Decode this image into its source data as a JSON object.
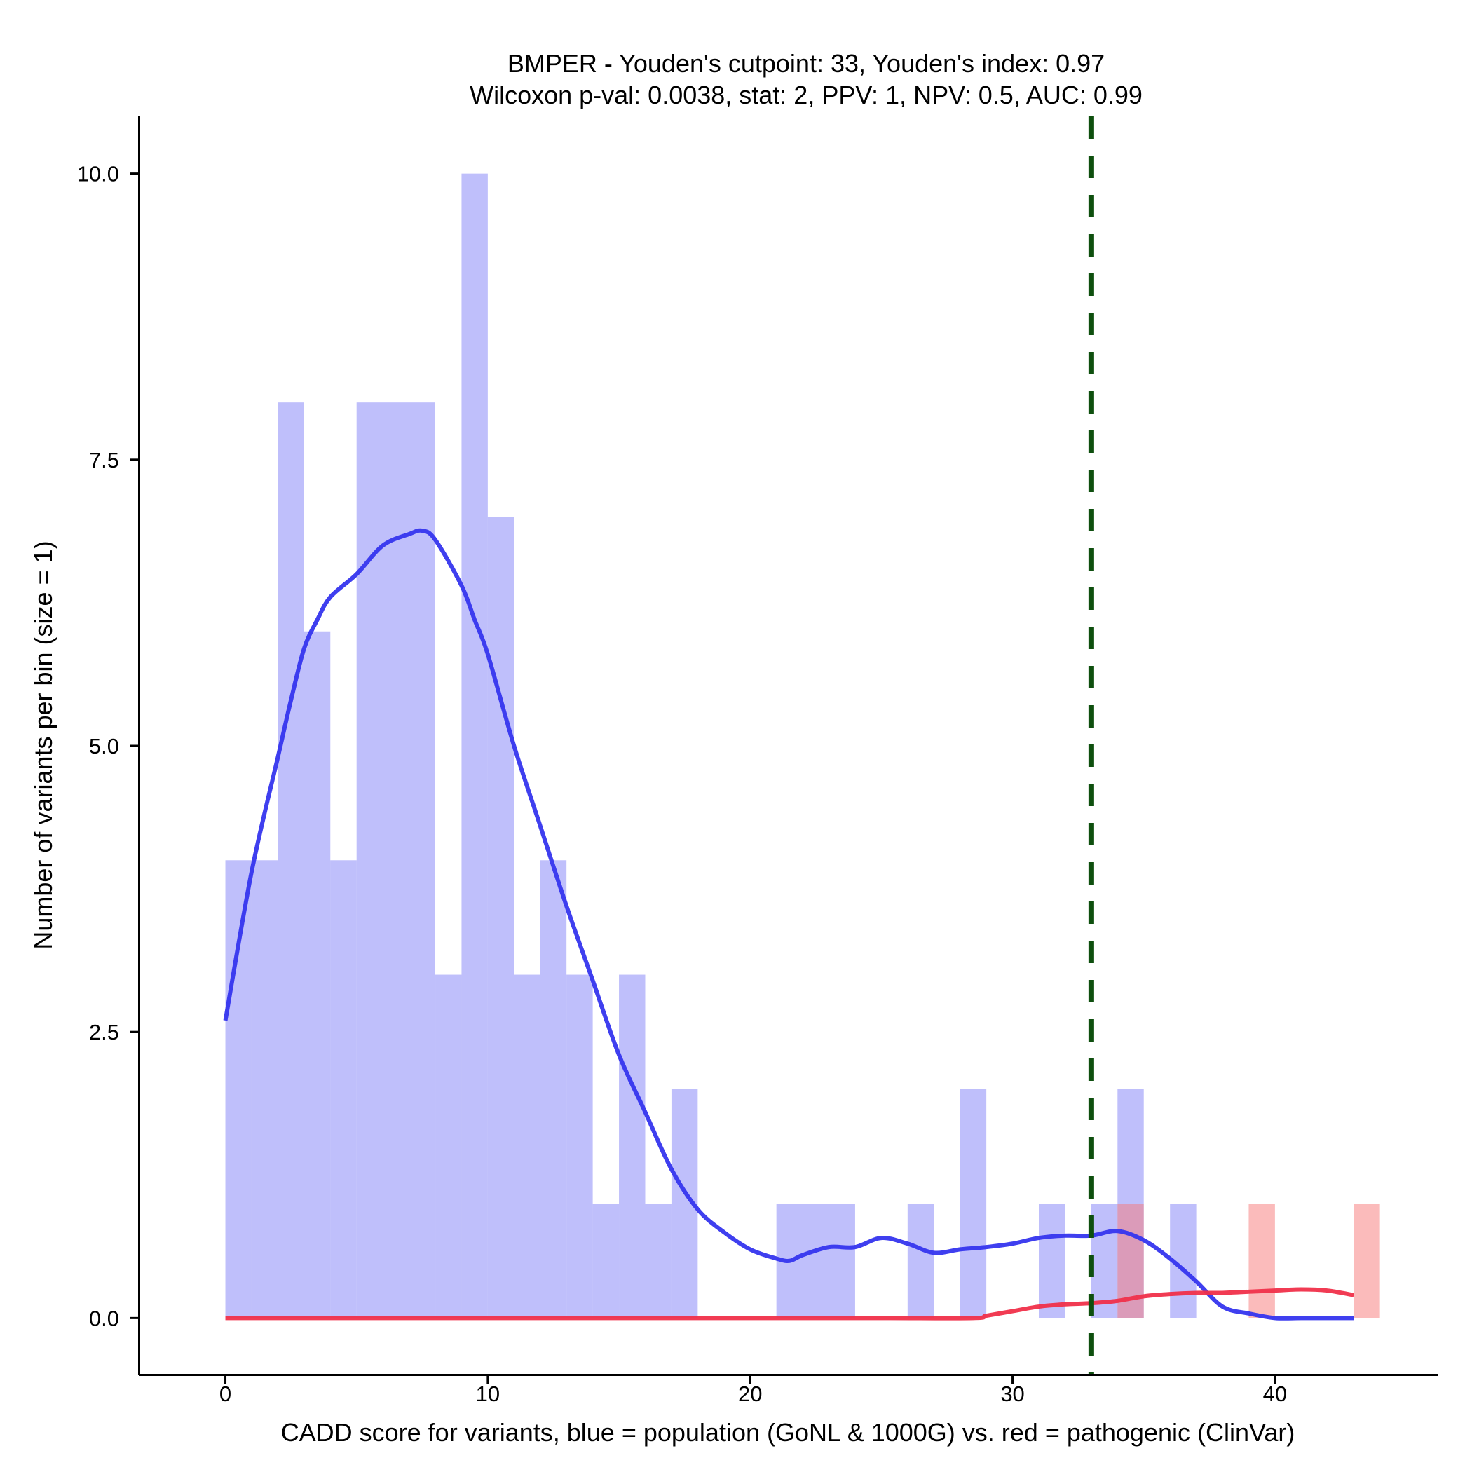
{
  "chart_data": {
    "type": "bar",
    "title_line1": "BMPER - Youden's cutpoint: 33, Youden's index: 0.97",
    "title_line2": "Wilcoxon p-val: 0.0038, stat: 2, PPV: 1, NPV: 0.5, AUC: 0.99",
    "xlabel": "CADD score for variants, blue = population (GoNL & 1000G) vs. red = pathogenic (ClinVar)",
    "ylabel": "Number of variants per bin (size = 1)",
    "xlim": [
      -3.3,
      46.2
    ],
    "ylim": [
      -0.5,
      10.5
    ],
    "x_ticks": [
      0,
      10,
      20,
      30,
      40
    ],
    "x_tick_labels": [
      "0",
      "10",
      "20",
      "30",
      "40"
    ],
    "y_ticks": [
      0,
      2.5,
      5,
      7.5,
      10
    ],
    "y_tick_labels": [
      "0.0",
      "2.5",
      "5.0",
      "7.5",
      "10.0"
    ],
    "bin_size": 1,
    "series": [
      {
        "name": "population (GoNL & 1000G)",
        "color": "#8080f8",
        "opacity": 0.5,
        "bin_starts": [
          0,
          1,
          2,
          3,
          4,
          5,
          6,
          7,
          8,
          9,
          10,
          11,
          12,
          13,
          14,
          15,
          16,
          17,
          21,
          22,
          23,
          26,
          28,
          31,
          33,
          34,
          36
        ],
        "counts": [
          4,
          4,
          8,
          6,
          4,
          8,
          8,
          8,
          3,
          10,
          7,
          3,
          4,
          3,
          1,
          3,
          1,
          2,
          1,
          1,
          1,
          1,
          2,
          1,
          1,
          2,
          1
        ]
      },
      {
        "name": "pathogenic (ClinVar)",
        "color": "#f87878",
        "opacity": 0.5,
        "bin_starts": [
          34,
          39,
          43
        ],
        "counts": [
          1,
          1,
          1
        ]
      }
    ],
    "density_lines": [
      {
        "name": "population density",
        "color": "#3535ee",
        "x": [
          0,
          1,
          2,
          2.5,
          3,
          3.5,
          4,
          5,
          6,
          7,
          7.5,
          8,
          9,
          9.5,
          10,
          11,
          12,
          13,
          14,
          15,
          16,
          17,
          18,
          19,
          20,
          21,
          21.5,
          22,
          23,
          24,
          25,
          26,
          27,
          28,
          29,
          30,
          31,
          32,
          33,
          34,
          35,
          36,
          37,
          38,
          39,
          40,
          41,
          42,
          43
        ],
        "y": [
          2.6,
          3.9,
          4.9,
          5.4,
          5.85,
          6.1,
          6.3,
          6.5,
          6.75,
          6.85,
          6.88,
          6.8,
          6.4,
          6.1,
          5.8,
          5.0,
          4.3,
          3.6,
          2.95,
          2.3,
          1.8,
          1.3,
          0.95,
          0.75,
          0.6,
          0.52,
          0.5,
          0.55,
          0.62,
          0.62,
          0.7,
          0.65,
          0.57,
          0.6,
          0.62,
          0.65,
          0.7,
          0.72,
          0.72,
          0.76,
          0.68,
          0.52,
          0.32,
          0.1,
          0.04,
          0.0,
          0.0,
          0.0,
          0.0
        ]
      },
      {
        "name": "pathogenic density",
        "color": "#f0304a",
        "x": [
          0,
          5,
          10,
          15,
          20,
          25,
          28.5,
          29,
          30,
          31,
          32,
          33,
          34,
          35,
          36,
          37,
          38,
          39,
          40,
          41,
          42,
          43
        ],
        "y": [
          0,
          0,
          0,
          0,
          0,
          0,
          0,
          0.02,
          0.06,
          0.1,
          0.12,
          0.13,
          0.15,
          0.19,
          0.21,
          0.22,
          0.22,
          0.23,
          0.24,
          0.25,
          0.24,
          0.2
        ]
      }
    ],
    "cutpoint": {
      "label": "Youden's cutpoint",
      "x": 33,
      "color": "#0e4f0e"
    }
  }
}
